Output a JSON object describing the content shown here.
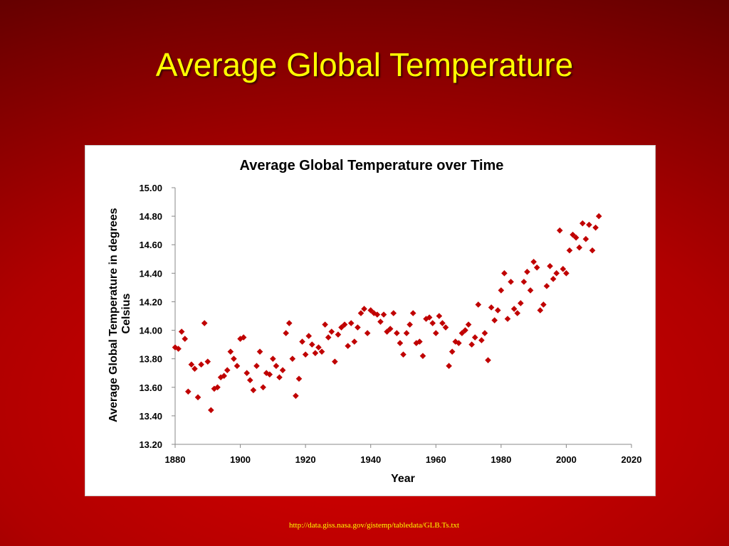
{
  "slide": {
    "title": "Average Global Temperature",
    "source": "http://data.giss.nasa.gov/gistemp/tabledata/GLB.Ts.txt"
  },
  "colors": {
    "background": "#b00000",
    "title": "#ffff00",
    "marker": "#c00000"
  },
  "chart_data": {
    "type": "scatter",
    "title": "Average Global Temperature over Time",
    "xlabel": "Year",
    "ylabel": "Average Global Temperature in  degrees Celsius",
    "xlim": [
      1880,
      2020
    ],
    "ylim": [
      13.2,
      15.0
    ],
    "xticks": [
      "1880",
      "1900",
      "1920",
      "1940",
      "1960",
      "1980",
      "2000",
      "2020"
    ],
    "yticks": [
      "13.20",
      "13.40",
      "13.60",
      "13.80",
      "14.00",
      "14.20",
      "14.40",
      "14.60",
      "14.80",
      "15.00"
    ],
    "marker": "diamond",
    "grid": false,
    "legend": "none",
    "x": [
      1880,
      1881,
      1882,
      1883,
      1884,
      1885,
      1886,
      1887,
      1888,
      1889,
      1890,
      1891,
      1892,
      1893,
      1894,
      1895,
      1896,
      1897,
      1898,
      1899,
      1900,
      1901,
      1902,
      1903,
      1904,
      1905,
      1906,
      1907,
      1908,
      1909,
      1910,
      1911,
      1912,
      1913,
      1914,
      1915,
      1916,
      1917,
      1918,
      1919,
      1920,
      1921,
      1922,
      1923,
      1924,
      1925,
      1926,
      1927,
      1928,
      1929,
      1930,
      1931,
      1932,
      1933,
      1934,
      1935,
      1936,
      1937,
      1938,
      1939,
      1940,
      1941,
      1942,
      1943,
      1944,
      1945,
      1946,
      1947,
      1948,
      1949,
      1950,
      1951,
      1952,
      1953,
      1954,
      1955,
      1956,
      1957,
      1958,
      1959,
      1960,
      1961,
      1962,
      1963,
      1964,
      1965,
      1966,
      1967,
      1968,
      1969,
      1970,
      1971,
      1972,
      1973,
      1974,
      1975,
      1976,
      1977,
      1978,
      1979,
      1980,
      1981,
      1982,
      1983,
      1984,
      1985,
      1986,
      1987,
      1988,
      1989,
      1990,
      1991,
      1992,
      1993,
      1994,
      1995,
      1996,
      1997,
      1998,
      1999,
      2000,
      2001,
      2002,
      2003,
      2004,
      2005,
      2006,
      2007,
      2008,
      2009,
      2010
    ],
    "y": [
      13.88,
      13.87,
      13.99,
      13.94,
      13.57,
      13.76,
      13.73,
      13.53,
      13.76,
      14.05,
      13.78,
      13.44,
      13.59,
      13.6,
      13.67,
      13.68,
      13.72,
      13.85,
      13.8,
      13.75,
      13.94,
      13.95,
      13.7,
      13.65,
      13.58,
      13.75,
      13.85,
      13.6,
      13.7,
      13.69,
      13.8,
      13.75,
      13.67,
      13.72,
      13.98,
      14.05,
      13.8,
      13.54,
      13.66,
      13.92,
      13.83,
      13.96,
      13.9,
      13.84,
      13.88,
      13.85,
      14.04,
      13.95,
      13.99,
      13.78,
      13.97,
      14.02,
      14.04,
      13.89,
      14.05,
      13.92,
      14.02,
      14.12,
      14.15,
      13.98,
      14.14,
      14.12,
      14.11,
      14.06,
      14.11,
      13.99,
      14.01,
      14.12,
      13.98,
      13.91,
      13.83,
      13.98,
      14.04,
      14.12,
      13.91,
      13.92,
      13.82,
      14.08,
      14.09,
      14.05,
      13.98,
      14.1,
      14.05,
      14.02,
      13.75,
      13.85,
      13.92,
      13.91,
      13.98,
      14.0,
      14.04,
      13.9,
      13.95,
      14.18,
      13.93,
      13.98,
      13.79,
      14.16,
      14.07,
      14.14,
      14.28,
      14.4,
      14.08,
      14.34,
      14.15,
      14.12,
      14.19,
      14.34,
      14.41,
      14.28,
      14.48,
      14.44,
      14.14,
      14.18,
      14.31,
      14.45,
      14.36,
      14.4,
      14.7,
      14.43,
      14.4,
      14.56,
      14.67,
      14.65,
      14.58,
      14.75,
      14.64,
      14.74,
      14.56,
      14.72,
      14.8
    ]
  }
}
